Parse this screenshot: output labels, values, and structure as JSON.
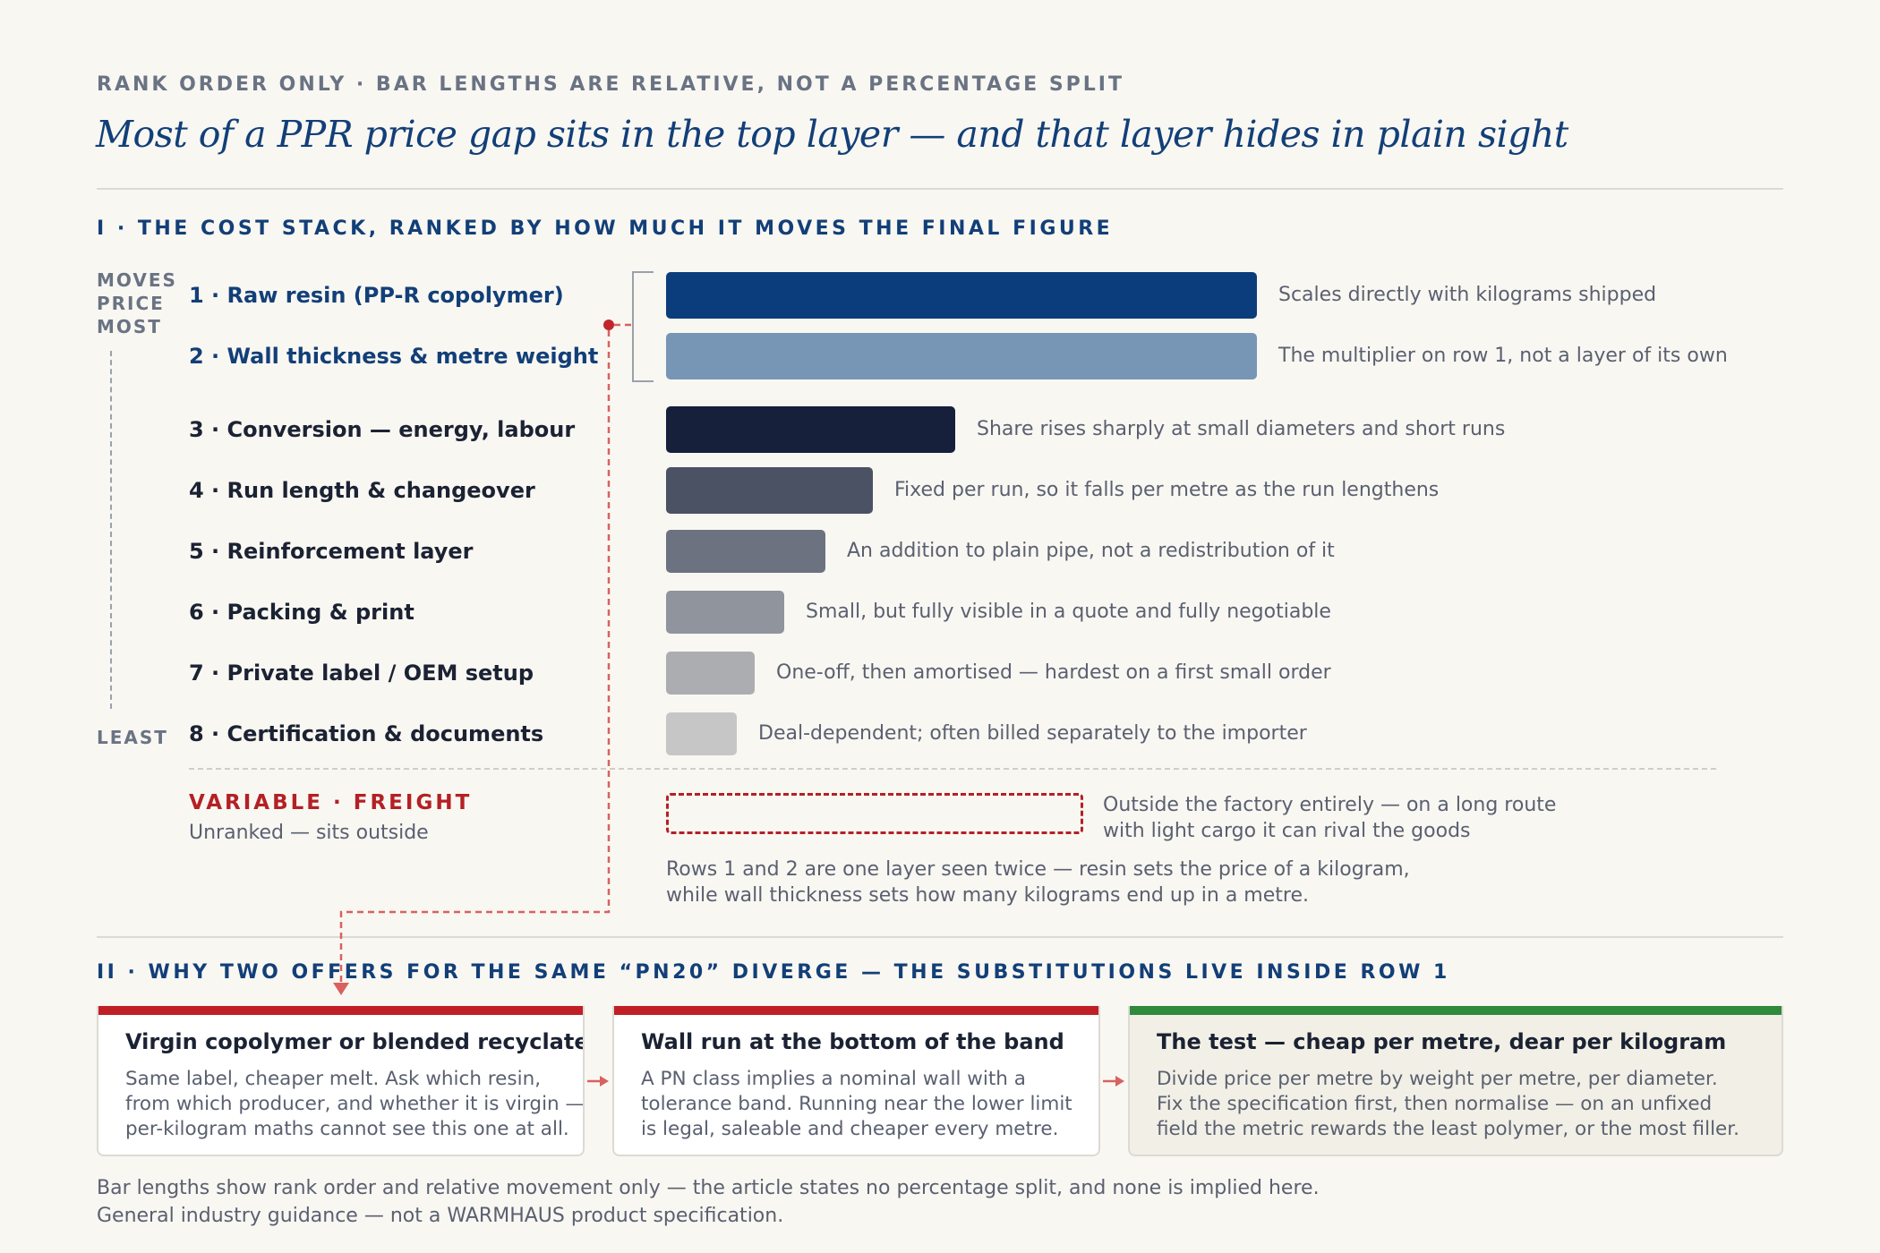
{
  "kicker": "RANK ORDER ONLY · BAR LENGTHS ARE RELATIVE, NOT A PERCENTAGE SPLIT",
  "title": "Most of a PPR price gap sits in the top layer — and that layer hides in plain sight",
  "section1": {
    "heading": "I · THE COST STACK, RANKED BY HOW MUCH IT MOVES THE FINAL FIGURE",
    "axis_top": "MOVES PRICE MOST",
    "axis_bottom": "LEAST",
    "rows": [
      {
        "label": "1 · Raw resin (PP-R copolymer)",
        "relative": 1.0,
        "color": "#0b3d7c",
        "note": "Scales directly with kilograms shipped"
      },
      {
        "label": "2 · Wall thickness & metre weight",
        "relative": 1.0,
        "color": "#7795b5",
        "note": "The multiplier on row 1, not a layer of its own"
      },
      {
        "label": "3 · Conversion — energy, labour",
        "relative": 0.49,
        "color": "#16203a",
        "note": "Share rises sharply at small diameters and short runs"
      },
      {
        "label": "4 · Run length & changeover",
        "relative": 0.35,
        "color": "#4a5263",
        "note": "Fixed per run, so it falls per metre as the run lengthens"
      },
      {
        "label": "5 · Reinforcement layer",
        "relative": 0.27,
        "color": "#6c7280",
        "note": "An addition to plain pipe, not a redistribution of it"
      },
      {
        "label": "6 · Packing & print",
        "relative": 0.2,
        "color": "#8f949d",
        "note": "Small, but fully visible in a quote and fully negotiable"
      },
      {
        "label": "7 · Private label / OEM setup",
        "relative": 0.15,
        "color": "#acadb0",
        "note": "One-off, then amortised — hardest on a first small order"
      },
      {
        "label": "8 · Certification & documents",
        "relative": 0.12,
        "color": "#c6c6c6",
        "note": "Deal-dependent; often billed separately to the importer"
      }
    ],
    "freight": {
      "label": "VARIABLE · FREIGHT",
      "sub": "Unranked — sits outside",
      "note_line1": "Outside the factory entirely — on a long route",
      "note_line2": "with light cargo it can rival the goods"
    },
    "rows_note_line1": "Rows 1 and 2 are one layer seen twice — resin sets the price of a kilogram,",
    "rows_note_line2": "while wall thickness sets how many kilograms end up in a metre."
  },
  "section2": {
    "heading": "II · WHY TWO OFFERS FOR THE SAME “PN20” DIVERGE — THE SUBSTITUTIONS LIVE INSIDE ROW 1",
    "cards": [
      {
        "title": "Virgin copolymer or blended recyclate",
        "lines": [
          "Same label, cheaper melt. Ask which resin,",
          "from which producer, and whether it is virgin —",
          "per-kilogram maths cannot see this one at all."
        ]
      },
      {
        "title": "Wall run at the bottom of the band",
        "lines": [
          "A PN class implies a nominal wall with a",
          "tolerance band. Running near the lower limit",
          "is legal, saleable and cheaper every metre."
        ]
      },
      {
        "title": "The test — cheap per metre, dear per kilogram",
        "lines": [
          "Divide price per metre by weight per metre, per diameter.",
          "Fix the specification first, then normalise — on an unfixed",
          "field the metric rewards the least polymer, or the most filler."
        ]
      }
    ]
  },
  "footnote1": "Bar lengths show rank order and relative movement only — the article states no percentage split, and none is implied here.",
  "footnote2": "General industry guidance — not a WARMHAUS product specification.",
  "colors": {
    "accent_blue": "#123f78",
    "accent_red": "#b42025",
    "accent_green": "#2f8a3b"
  }
}
